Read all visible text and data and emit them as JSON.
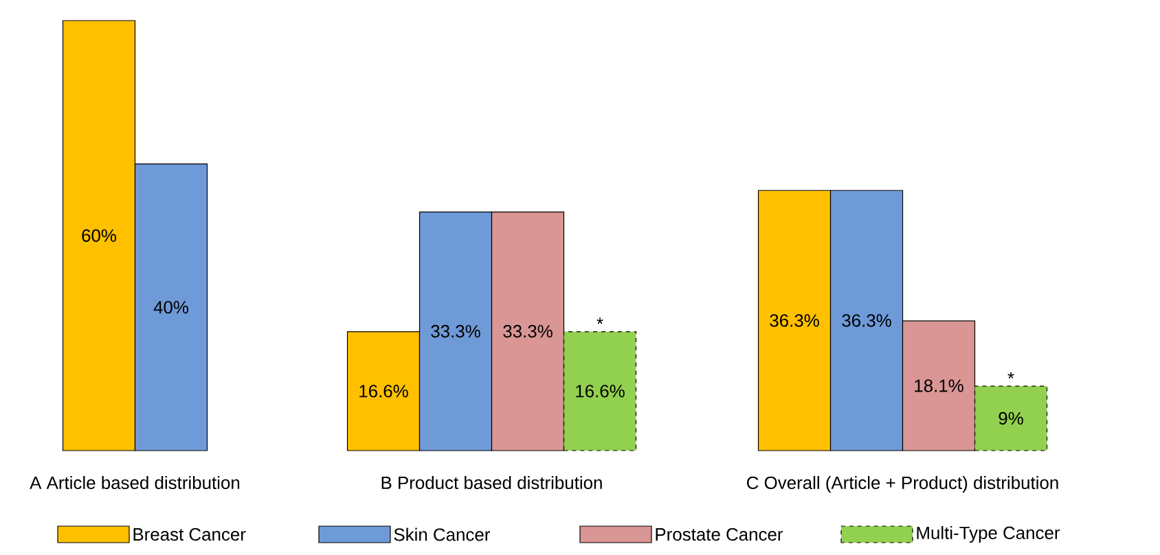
{
  "chart_data": [
    {
      "type": "bar",
      "title": "A Article based distribution",
      "categories": [
        null
      ],
      "data_labels": false,
      "series": [
        {
          "color": "#ffc000",
          "values": [
            60
          ],
          "value_labels": [
            "60%"
          ]
        },
        {
          "color": "#6f9ad8",
          "values": [
            40
          ],
          "value_labels": [
            "40%"
          ]
        }
      ]
    },
    {
      "type": "bar",
      "title": "B Product based distribution",
      "categories": [
        null
      ],
      "annotations": [
        "*"
      ],
      "series": [
        {
          "color": "#ffc000",
          "values": [
            16.6
          ],
          "value_labels": [
            "16.6%"
          ]
        },
        {
          "color": "#6f9ad8",
          "values": [
            33.3
          ],
          "value_labels": [
            "33.3%"
          ]
        },
        {
          "color": "#d99694",
          "values": [
            33.3
          ],
          "value_labels": [
            "33.3%"
          ]
        },
        {
          "color": "#92d050",
          "values": [
            16.6
          ],
          "value_labels": [
            "16.6%"
          ],
          "line_style": "dashed"
        }
      ]
    },
    {
      "type": "bar",
      "title": "C Overall (Article + Product) distribution",
      "categories": [
        null
      ],
      "annotations": [
        "*"
      ],
      "legend": "bottom",
      "series": [
        {
          "name": "Breast Cancer",
          "color": "#ffc000",
          "values": [
            36.3
          ],
          "value_labels": [
            "36.3%"
          ]
        },
        {
          "name": "Skin Cancer",
          "color": "#6f9ad8",
          "values": [
            36.3
          ],
          "value_labels": [
            "36.3%"
          ]
        },
        {
          "name": "Prostate Cancer",
          "color": "#d99694",
          "values": [
            18.1
          ],
          "value_labels": [
            "18.1%"
          ]
        },
        {
          "name": "Multi-Type Cancer",
          "color": "#92d050",
          "values": [
            9
          ],
          "value_labels": [
            "9%"
          ],
          "line_style": "dashed"
        }
      ]
    }
  ]
}
